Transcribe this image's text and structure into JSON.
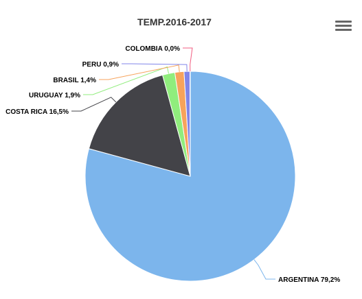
{
  "chart_data": {
    "type": "pie",
    "title": "TEMP.2016-2017",
    "start_angle_deg": 0,
    "slices": [
      {
        "name": "ARGENTINA",
        "label": "ARGENTINA 79,2%",
        "value": 79.2,
        "color": "#7cb5ec"
      },
      {
        "name": "COSTA RICA",
        "label": "COSTA RICA 16,5%",
        "value": 16.5,
        "color": "#434348"
      },
      {
        "name": "URUGUAY",
        "label": "URUGUAY 1,9%",
        "value": 1.9,
        "color": "#90ed7d"
      },
      {
        "name": "BRASIL",
        "label": "BRASIL 1,4%",
        "value": 1.4,
        "color": "#f7a35c"
      },
      {
        "name": "PERU",
        "label": "PERU 0,9%",
        "value": 0.9,
        "color": "#8085e9"
      },
      {
        "name": "COLOMBIA",
        "label": "COLOMBIA 0,0%",
        "value": 0.05,
        "color": "#f15c80"
      }
    ]
  },
  "menu": {
    "icon": "hamburger-icon"
  }
}
